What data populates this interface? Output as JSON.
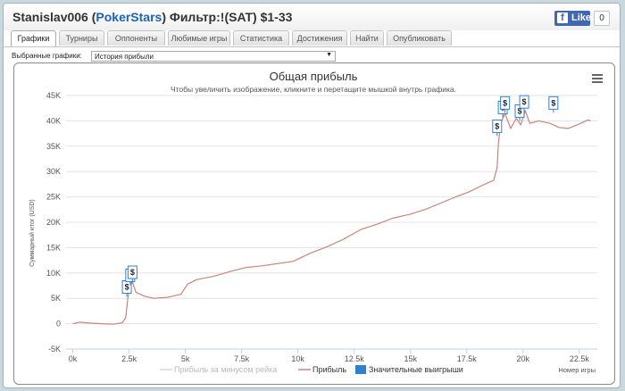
{
  "header": {
    "player": "Stanislav006 (",
    "site": "PokerStars",
    "rest": ") Фильтр:!(SAT) $1-33",
    "like_label": "Like",
    "like_count": "0"
  },
  "tabs": [
    {
      "label": "Графики",
      "active": true
    },
    {
      "label": "Турниры"
    },
    {
      "label": "Оппоненты"
    },
    {
      "label": "Любимые игры"
    },
    {
      "label": "Статистика"
    },
    {
      "label": "Достижения"
    },
    {
      "label": "Найти"
    },
    {
      "label": "Опубликовать"
    }
  ],
  "selector": {
    "label": "Выбранные графики:",
    "value": "История прибыли",
    "arrow": "▼"
  },
  "chart_data": {
    "type": "line",
    "title": "Общая прибыль",
    "subtitle": "Чтобы увеличить изображение, кликните и перетащите мышкой внутрь графика.",
    "ylabel": "Суммарный итог (USD)",
    "xlabel": "Номер игры",
    "ylim": [
      -5000,
      45000
    ],
    "xlim": [
      -300,
      23300
    ],
    "grid": true,
    "yticks": [
      -5000,
      0,
      5000,
      10000,
      15000,
      20000,
      25000,
      30000,
      35000,
      40000,
      45000
    ],
    "ytick_labels": [
      "-5K",
      "0",
      "5K",
      "10K",
      "15K",
      "20K",
      "25K",
      "30K",
      "35K",
      "40K",
      "45K"
    ],
    "xticks": [
      0,
      2500,
      5000,
      7500,
      10000,
      12500,
      15000,
      17500,
      20000,
      22500
    ],
    "xtick_labels": [
      "0k",
      "2.5k",
      "5k",
      "7.5k",
      "10k",
      "12.5k",
      "15k",
      "17.5k",
      "20k",
      "22.5k"
    ],
    "legend_position": "bottom",
    "series": [
      {
        "name": "Прибыль за минусом рейка",
        "color": "#d8d8d8",
        "hidden": true
      },
      {
        "name": "Прибыль",
        "color": "#c8857a",
        "points": [
          [
            0,
            0
          ],
          [
            300,
            300
          ],
          [
            800,
            100
          ],
          [
            1300,
            0
          ],
          [
            1800,
            -100
          ],
          [
            2200,
            200
          ],
          [
            2350,
            1200
          ],
          [
            2450,
            5200
          ],
          [
            2550,
            7600
          ],
          [
            2650,
            8200
          ],
          [
            2800,
            6200
          ],
          [
            3200,
            5400
          ],
          [
            3600,
            5000
          ],
          [
            4200,
            5200
          ],
          [
            4800,
            5800
          ],
          [
            5100,
            7800
          ],
          [
            5500,
            8700
          ],
          [
            6200,
            9300
          ],
          [
            7000,
            10300
          ],
          [
            7700,
            11100
          ],
          [
            8400,
            11400
          ],
          [
            9000,
            11800
          ],
          [
            9800,
            12300
          ],
          [
            10500,
            13800
          ],
          [
            11300,
            15200
          ],
          [
            12000,
            16600
          ],
          [
            12800,
            18600
          ],
          [
            13500,
            19600
          ],
          [
            14200,
            20800
          ],
          [
            15000,
            21600
          ],
          [
            15700,
            22600
          ],
          [
            16300,
            23700
          ],
          [
            17000,
            25000
          ],
          [
            17600,
            26000
          ],
          [
            18200,
            27300
          ],
          [
            18700,
            28300
          ],
          [
            18850,
            30800
          ],
          [
            18900,
            35300
          ],
          [
            19000,
            39500
          ],
          [
            19200,
            41500
          ],
          [
            19450,
            38500
          ],
          [
            19700,
            40500
          ],
          [
            19900,
            39200
          ],
          [
            20100,
            42000
          ],
          [
            20300,
            39500
          ],
          [
            20700,
            40000
          ],
          [
            21200,
            39500
          ],
          [
            21600,
            38700
          ],
          [
            22000,
            38500
          ],
          [
            22400,
            39200
          ],
          [
            22900,
            40200
          ],
          [
            23000,
            40000
          ]
        ]
      },
      {
        "name": "Значительные выигрыши",
        "color": "#2f7ed8",
        "markers": [
          {
            "x": 2400,
            "y": 5300,
            "label": "$"
          },
          {
            "x": 2550,
            "y": 7600,
            "label": "$"
          },
          {
            "x": 2650,
            "y": 8200,
            "label": "$"
          },
          {
            "x": 18850,
            "y": 37000,
            "label": "$"
          },
          {
            "x": 19100,
            "y": 40700,
            "label": "$"
          },
          {
            "x": 19200,
            "y": 41600,
            "label": "$"
          },
          {
            "x": 19850,
            "y": 40000,
            "label": "$"
          },
          {
            "x": 20050,
            "y": 41800,
            "label": "$"
          },
          {
            "x": 21350,
            "y": 41600,
            "label": "$"
          }
        ]
      }
    ]
  }
}
